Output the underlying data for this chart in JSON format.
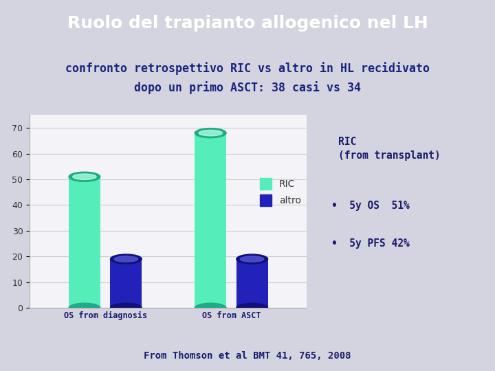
{
  "title": "Ruolo del trapianto allogenico nel LH",
  "title_bg": "#00008b",
  "title_color": "#ffffff",
  "subtitle": "confronto retrospettivo RIC vs altro in HL recidivato\ndopo un primo ASCT: 38 casi vs 34",
  "subtitle_color": "#1a237e",
  "subtitle_bg": "#e8e8f0",
  "categories": [
    "OS from diagnosis",
    "OS from ASCT"
  ],
  "ric_values": [
    51,
    68
  ],
  "altro_values": [
    19,
    19
  ],
  "ric_color": "#55eebb",
  "ric_dark": "#22aa88",
  "ric_light": "#aaffdd",
  "altro_color": "#2222bb",
  "altro_dark": "#111177",
  "altro_light": "#5555dd",
  "ylim": [
    0,
    75
  ],
  "yticks": [
    0,
    10,
    20,
    30,
    40,
    50,
    60,
    70
  ],
  "info_title": "RIC\n(from transplant)",
  "info_bullets": [
    "5y OS  51%",
    "5y PFS 42%"
  ],
  "info_color": "#1a1a6e",
  "footer": "From Thomson et al BMT 41, 765, 2008",
  "footer_color": "#1a1a6e",
  "bg_color": "#d4d4e0",
  "chart_bg": "#f4f4f8",
  "grid_color": "#cccccc"
}
